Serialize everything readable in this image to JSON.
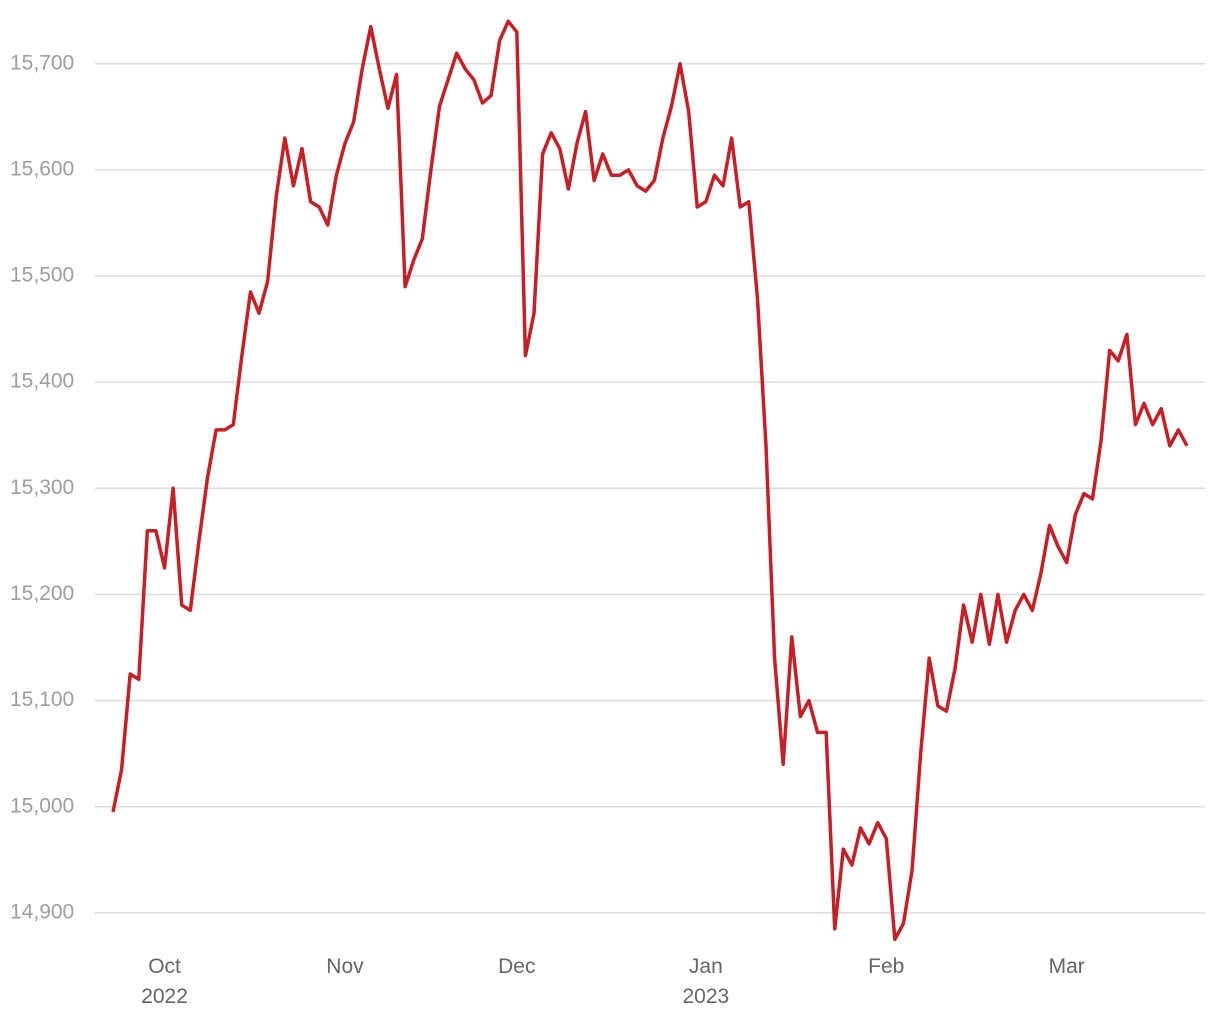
{
  "chart_data": {
    "type": "line",
    "color": "#c62026",
    "grid": true,
    "ylim": [
      14865,
      15745
    ],
    "yticks": [
      {
        "value": 14900,
        "label": "14,900"
      },
      {
        "value": 15000,
        "label": "15,000"
      },
      {
        "value": 15100,
        "label": "15,100"
      },
      {
        "value": 15200,
        "label": "15,200"
      },
      {
        "value": 15300,
        "label": "15,300"
      },
      {
        "value": 15400,
        "label": "15,400"
      },
      {
        "value": 15500,
        "label": "15,500"
      },
      {
        "value": 15600,
        "label": "15,600"
      },
      {
        "value": 15700,
        "label": "15,700"
      }
    ],
    "categories": [
      null,
      null,
      null,
      null,
      null,
      null,
      "Oct\n2022",
      null,
      null,
      null,
      null,
      null,
      null,
      null,
      null,
      null,
      null,
      null,
      null,
      null,
      null,
      null,
      null,
      null,
      null,
      null,
      null,
      "Nov",
      null,
      null,
      null,
      null,
      null,
      null,
      null,
      null,
      null,
      null,
      null,
      null,
      null,
      null,
      null,
      null,
      null,
      null,
      null,
      "Dec",
      null,
      null,
      null,
      null,
      null,
      null,
      null,
      null,
      null,
      null,
      null,
      null,
      null,
      null,
      null,
      null,
      null,
      null,
      null,
      null,
      null,
      "Jan\n2023",
      null,
      null,
      null,
      null,
      null,
      null,
      null,
      null,
      null,
      null,
      null,
      null,
      null,
      null,
      null,
      null,
      null,
      null,
      null,
      null,
      "Feb",
      null,
      null,
      null,
      null,
      null,
      null,
      null,
      null,
      null,
      null,
      null,
      null,
      null,
      null,
      null,
      null,
      null,
      null,
      null,
      null,
      "Mar",
      null,
      null,
      null,
      null,
      null,
      null,
      null,
      null,
      null,
      null,
      null,
      null,
      null,
      null
    ],
    "values": [
      14995,
      15035,
      15125,
      15120,
      15260,
      15260,
      15225,
      15300,
      15190,
      15185,
      15250,
      15310,
      15355,
      15355,
      15360,
      15425,
      15485,
      15465,
      15495,
      15575,
      15630,
      15585,
      15620,
      15570,
      15565,
      15548,
      15595,
      15625,
      15645,
      15695,
      15735,
      15695,
      15658,
      15690,
      15490,
      15515,
      15535,
      15600,
      15660,
      15685,
      15710,
      15695,
      15685,
      15663,
      15670,
      15722,
      15740,
      15730,
      15425,
      15465,
      15615,
      15635,
      15620,
      15582,
      15625,
      15655,
      15590,
      15615,
      15595,
      15595,
      15600,
      15585,
      15580,
      15590,
      15630,
      15660,
      15700,
      15655,
      15565,
      15570,
      15595,
      15585,
      15630,
      15565,
      15570,
      15480,
      15340,
      15140,
      15040,
      15160,
      15085,
      15100,
      15070,
      15070,
      14885,
      14960,
      14945,
      14980,
      14965,
      14985,
      14970,
      14875,
      14890,
      14940,
      15050,
      15140,
      15095,
      15090,
      15130,
      15190,
      15155,
      15200,
      15153,
      15200,
      15155,
      15185,
      15200,
      15185,
      15220,
      15265,
      15245,
      15230,
      15275,
      15295,
      15290,
      15345,
      15430,
      15420,
      15445,
      15360,
      15380,
      15360,
      15375,
      15340,
      15355,
      15340
    ]
  }
}
